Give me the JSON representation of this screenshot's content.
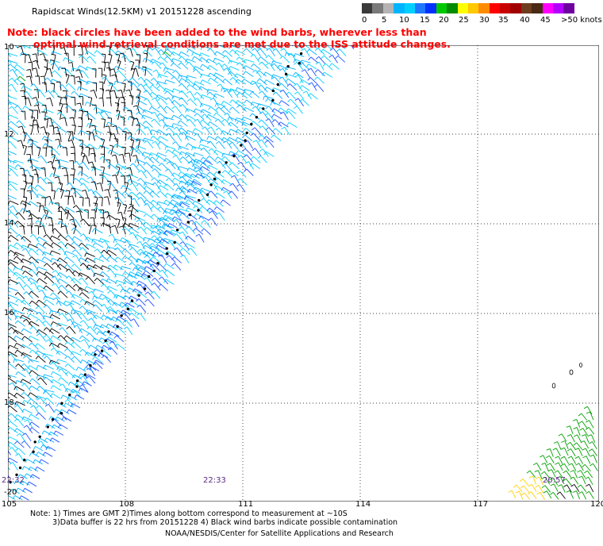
{
  "title": "Rapidscat Winds(12.5KM)  v1  20151228  ascending",
  "note_line1": "Note: black circles have been added to the wind barbs, wherever less than",
  "note_line2": "optimal wind retrieval conditions are met due to the ISS attitude changes.",
  "legend": {
    "colors": [
      "#3a3a3a",
      "#7a7a7a",
      "#b4b4b4",
      "#00b4ff",
      "#00d0ff",
      "#1e78ff",
      "#0032ff",
      "#00c800",
      "#008c00",
      "#ffff00",
      "#ffc800",
      "#ff8c00",
      "#ff0000",
      "#c80000",
      "#a00000",
      "#6e3c1e",
      "#4a2a14",
      "#ff00ff",
      "#b400ff",
      "#6e00a0"
    ],
    "labels": [
      "0",
      "5",
      "10",
      "15",
      "20",
      "25",
      "30",
      "35",
      "40",
      "45",
      ">50 knots"
    ]
  },
  "y_axis_labels": [
    "10",
    "12",
    "14",
    "16",
    "18",
    "-20"
  ],
  "x_axis_labels": [
    "105",
    "108",
    "111",
    "114",
    "117",
    "120"
  ],
  "pass_times": [
    "22:32",
    "22:33",
    "20:57"
  ],
  "footer": {
    "line1": "Note: 1) Times are GMT  2)Times along bottom correspond to measurement at ~10S",
    "line2": "3)Data buffer is 22 hrs from 20151228  4) Black wind barbs indicate possible contamination",
    "line3": "NOAA/NESDIS/Center for Satellite Applications and Research"
  },
  "barb_colors": {
    "black": "#000000",
    "cyan": "#00b4ff",
    "light_cyan": "#00d0ff",
    "blue": "#1e50ff",
    "green": "#00a000",
    "yellow": "#ffd000"
  }
}
